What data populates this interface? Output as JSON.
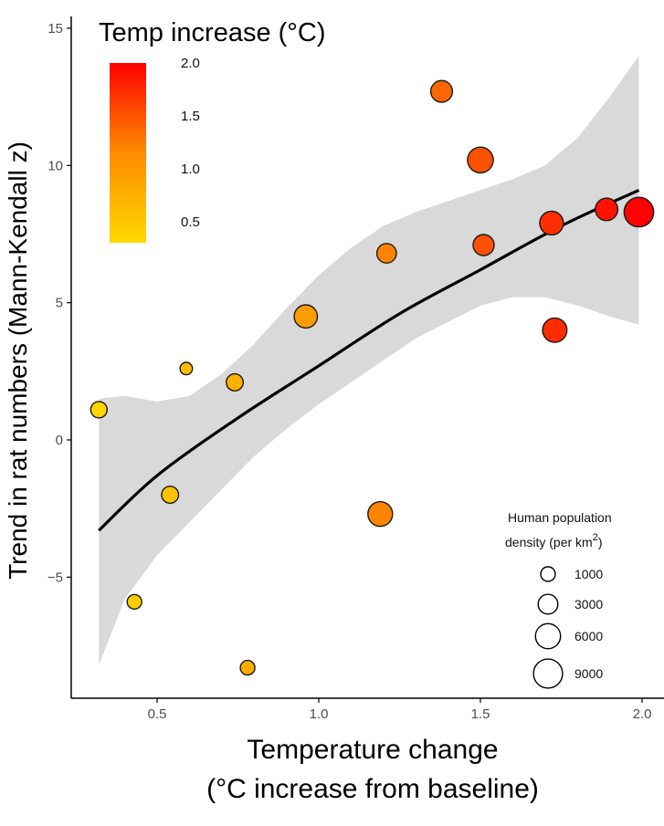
{
  "chart_data": {
    "type": "scatter",
    "xlabel_lines": [
      "Temperature change",
      "(°C increase from baseline)"
    ],
    "ylabel": "Trend in rat numbers (Mann-Kendall z)",
    "xlim": [
      0.22,
      2.07
    ],
    "ylim": [
      -9.5,
      15.2
    ],
    "x_ticks": [
      0.5,
      1.0,
      1.5,
      2.0
    ],
    "x_tick_labels": [
      "0.5",
      "1.0",
      "1.5",
      "2.0"
    ],
    "y_ticks": [
      -5,
      0,
      5,
      10,
      15
    ],
    "y_tick_labels": [
      "−5",
      "0",
      "5",
      "10",
      "15"
    ],
    "grid": false,
    "points": [
      {
        "x": 0.32,
        "y": 1.1,
        "density": 1600
      },
      {
        "x": 0.43,
        "y": -5.9,
        "density": 1000
      },
      {
        "x": 0.54,
        "y": -2.0,
        "density": 1800
      },
      {
        "x": 0.59,
        "y": 2.6,
        "density": 500
      },
      {
        "x": 0.74,
        "y": 2.1,
        "density": 1800
      },
      {
        "x": 0.78,
        "y": -8.3,
        "density": 1000
      },
      {
        "x": 0.96,
        "y": 4.5,
        "density": 4800
      },
      {
        "x": 1.19,
        "y": -2.7,
        "density": 5800
      },
      {
        "x": 1.21,
        "y": 6.8,
        "density": 2900
      },
      {
        "x": 1.38,
        "y": 12.7,
        "density": 4000
      },
      {
        "x": 1.5,
        "y": 10.2,
        "density": 6500
      },
      {
        "x": 1.51,
        "y": 7.1,
        "density": 3600
      },
      {
        "x": 1.72,
        "y": 7.9,
        "density": 5200
      },
      {
        "x": 1.73,
        "y": 4.0,
        "density": 5500
      },
      {
        "x": 1.89,
        "y": 8.4,
        "density": 4400
      },
      {
        "x": 1.99,
        "y": 8.3,
        "density": 9500
      }
    ],
    "trend_line": {
      "x": [
        0.32,
        0.5,
        0.75,
        1.0,
        1.25,
        1.5,
        1.75,
        1.99
      ],
      "y": [
        -3.3,
        -1.3,
        0.8,
        2.7,
        4.6,
        6.2,
        7.8,
        9.1
      ]
    },
    "confidence_band": {
      "x": [
        0.32,
        0.4,
        0.5,
        0.6,
        0.7,
        0.8,
        0.9,
        1.0,
        1.1,
        1.2,
        1.3,
        1.4,
        1.5,
        1.6,
        1.7,
        1.8,
        1.9,
        1.99
      ],
      "upper": [
        1.5,
        1.6,
        1.4,
        1.6,
        2.4,
        3.5,
        4.8,
        6.0,
        7.0,
        7.8,
        8.3,
        8.7,
        9.1,
        9.5,
        10.0,
        11.0,
        12.5,
        14.0
      ],
      "lower": [
        -8.2,
        -5.8,
        -4.2,
        -3.0,
        -1.8,
        -0.6,
        0.4,
        1.3,
        2.1,
        2.9,
        3.7,
        4.3,
        4.9,
        5.2,
        5.2,
        4.9,
        4.5,
        4.2
      ]
    },
    "colorbar": {
      "title": "Temp increase (°C)",
      "min": 0.3,
      "max": 2.0,
      "ticks": [
        0.5,
        1.0,
        1.5,
        2.0
      ],
      "tick_labels": [
        "0.5",
        "1.0",
        "1.5",
        "2.0"
      ],
      "color_low": "#ffd700",
      "color_high": "#ff0000"
    },
    "size_legend": {
      "title_lines": [
        "Human population",
        "density (per km",
        ")"
      ],
      "title_superscript": "2",
      "values": [
        1000,
        3000,
        6000,
        9000
      ],
      "labels": [
        "1000",
        "3000",
        "6000",
        "9000"
      ]
    },
    "colors": {
      "band": "#d9d9d9",
      "trend": "#000000",
      "point_outline": "#1a1a1a",
      "axis": "#000000"
    }
  }
}
